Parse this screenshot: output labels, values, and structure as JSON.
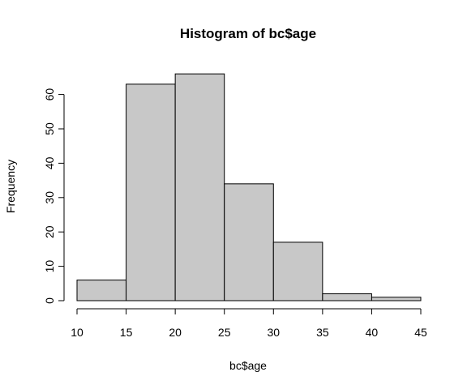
{
  "chart_data": {
    "type": "bar",
    "title": "Histogram of bc$age",
    "xlabel": "bc$age",
    "ylabel": "Frequency",
    "bins": [
      {
        "from": 10,
        "to": 15,
        "count": 6
      },
      {
        "from": 15,
        "to": 20,
        "count": 63
      },
      {
        "from": 20,
        "to": 25,
        "count": 66
      },
      {
        "from": 25,
        "to": 30,
        "count": 34
      },
      {
        "from": 30,
        "to": 35,
        "count": 17
      },
      {
        "from": 35,
        "to": 40,
        "count": 2
      },
      {
        "from": 40,
        "to": 45,
        "count": 1
      }
    ],
    "x_ticks": [
      10,
      15,
      20,
      25,
      30,
      35,
      40,
      45
    ],
    "y_ticks": [
      0,
      10,
      20,
      30,
      40,
      50,
      60
    ],
    "xlim": [
      10,
      45
    ],
    "ylim": [
      0,
      66
    ],
    "grid": false,
    "colors": {
      "bar_fill": "#c8c8c8",
      "bar_stroke": "#000000"
    }
  }
}
